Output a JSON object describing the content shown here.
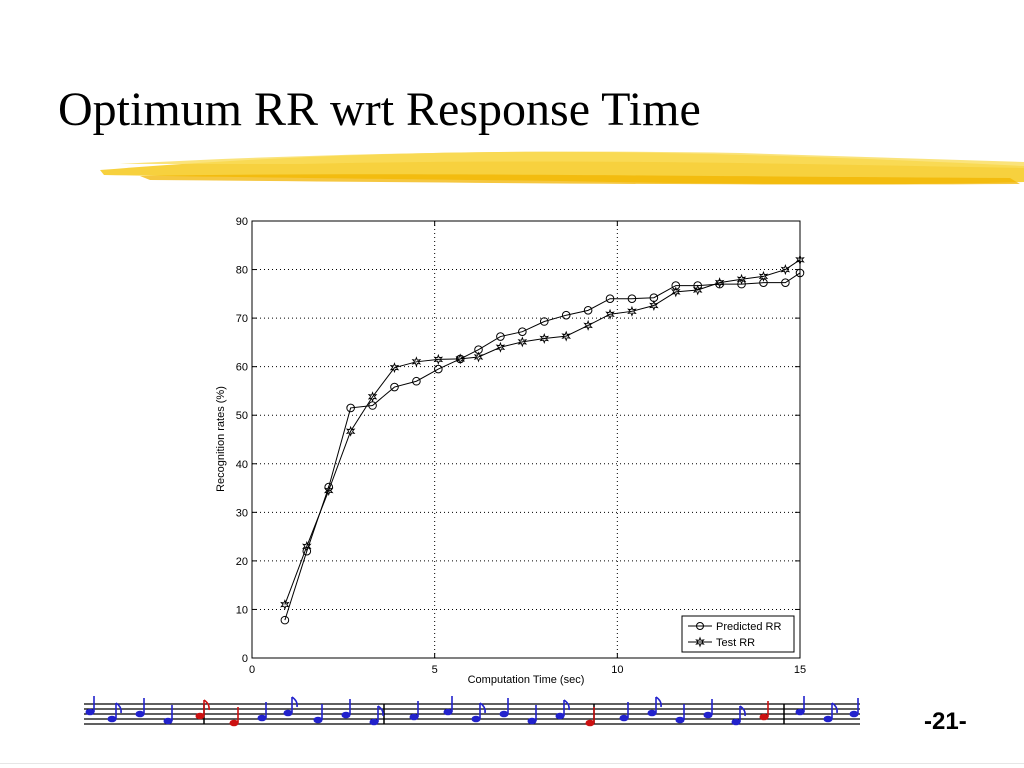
{
  "slide": {
    "title": "Optimum RR wrt Response Time",
    "page_number": "-21-"
  },
  "colors": {
    "highlight": "#f5c518",
    "note_blue": "#2222cc",
    "note_red": "#cc1111"
  },
  "chart_data": {
    "type": "line",
    "title": "",
    "xlabel": "Computation Time (sec)",
    "ylabel": "Recognition rates (%)",
    "xlim": [
      0,
      15
    ],
    "ylim": [
      0,
      90
    ],
    "xticks": [
      0,
      5,
      10,
      15
    ],
    "yticks": [
      0,
      10,
      20,
      30,
      40,
      50,
      60,
      70,
      80,
      90
    ],
    "grid": true,
    "legend_position": "bottom-right",
    "series": [
      {
        "name": "Predicted RR",
        "marker": "circle",
        "x": [
          0.9,
          1.5,
          2.1,
          2.7,
          3.3,
          3.9,
          4.5,
          5.1,
          5.7,
          6.2,
          6.8,
          7.4,
          8.0,
          8.6,
          9.2,
          9.8,
          10.4,
          11.0,
          11.6,
          12.2,
          12.8,
          13.4,
          14.0,
          14.6,
          15.0
        ],
        "y": [
          7.8,
          22.0,
          35.2,
          51.5,
          52.0,
          55.8,
          57.0,
          59.5,
          61.6,
          63.5,
          66.2,
          67.2,
          69.3,
          70.6,
          71.6,
          74.0,
          74.0,
          74.2,
          76.7,
          76.7,
          77.0,
          77.0,
          77.3,
          77.3,
          79.3
        ]
      },
      {
        "name": "Test RR",
        "marker": "star",
        "x": [
          0.9,
          1.5,
          2.1,
          2.7,
          3.3,
          3.9,
          4.5,
          5.1,
          5.7,
          6.2,
          6.8,
          7.4,
          8.0,
          8.6,
          9.2,
          9.8,
          10.4,
          11.0,
          11.6,
          12.2,
          12.8,
          13.4,
          14.0,
          14.6,
          15.0
        ],
        "y": [
          11.0,
          23.0,
          34.5,
          46.7,
          53.8,
          59.8,
          61.0,
          61.5,
          61.6,
          62.0,
          64.0,
          65.1,
          65.8,
          66.3,
          68.5,
          70.8,
          71.4,
          72.6,
          75.4,
          75.8,
          77.3,
          78.0,
          78.6,
          80.0,
          82.0
        ]
      }
    ]
  }
}
